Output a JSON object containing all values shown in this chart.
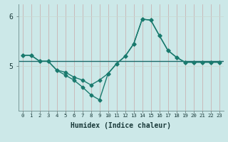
{
  "xlabel": "Humidex (Indice chaleur)",
  "x_values": [
    0,
    1,
    2,
    3,
    4,
    5,
    6,
    7,
    8,
    9,
    10,
    11,
    12,
    13,
    14,
    15,
    16,
    17,
    18,
    19,
    20,
    21,
    22,
    23
  ],
  "y1_values": [
    5.22,
    5.22,
    5.1,
    5.1,
    4.92,
    4.88,
    4.78,
    4.72,
    4.62,
    4.72,
    4.85,
    5.05,
    5.2,
    5.45,
    5.95,
    5.93,
    5.62,
    5.32,
    5.18,
    5.08,
    5.08,
    5.08,
    5.08,
    5.08
  ],
  "y2_values": [
    5.22,
    5.22,
    5.1,
    5.1,
    4.92,
    4.82,
    4.72,
    4.58,
    4.42,
    4.32,
    4.85,
    5.05,
    5.2,
    5.45,
    5.95,
    5.93,
    5.62,
    5.32,
    5.18,
    5.08,
    5.08,
    5.08,
    5.08,
    5.08
  ],
  "hline_y": 5.1,
  "line_color": "#1a7a6e",
  "bg_color": "#cce8e8",
  "grid_color_v": "#b8d8d8",
  "grid_color_h": "#c8e0e0",
  "hline_color": "#1a6a6a",
  "ylim_min": 4.1,
  "ylim_max": 6.25,
  "yticks": [
    5,
    6
  ],
  "marker": "D",
  "marker_size": 2.5,
  "linewidth": 1.0
}
